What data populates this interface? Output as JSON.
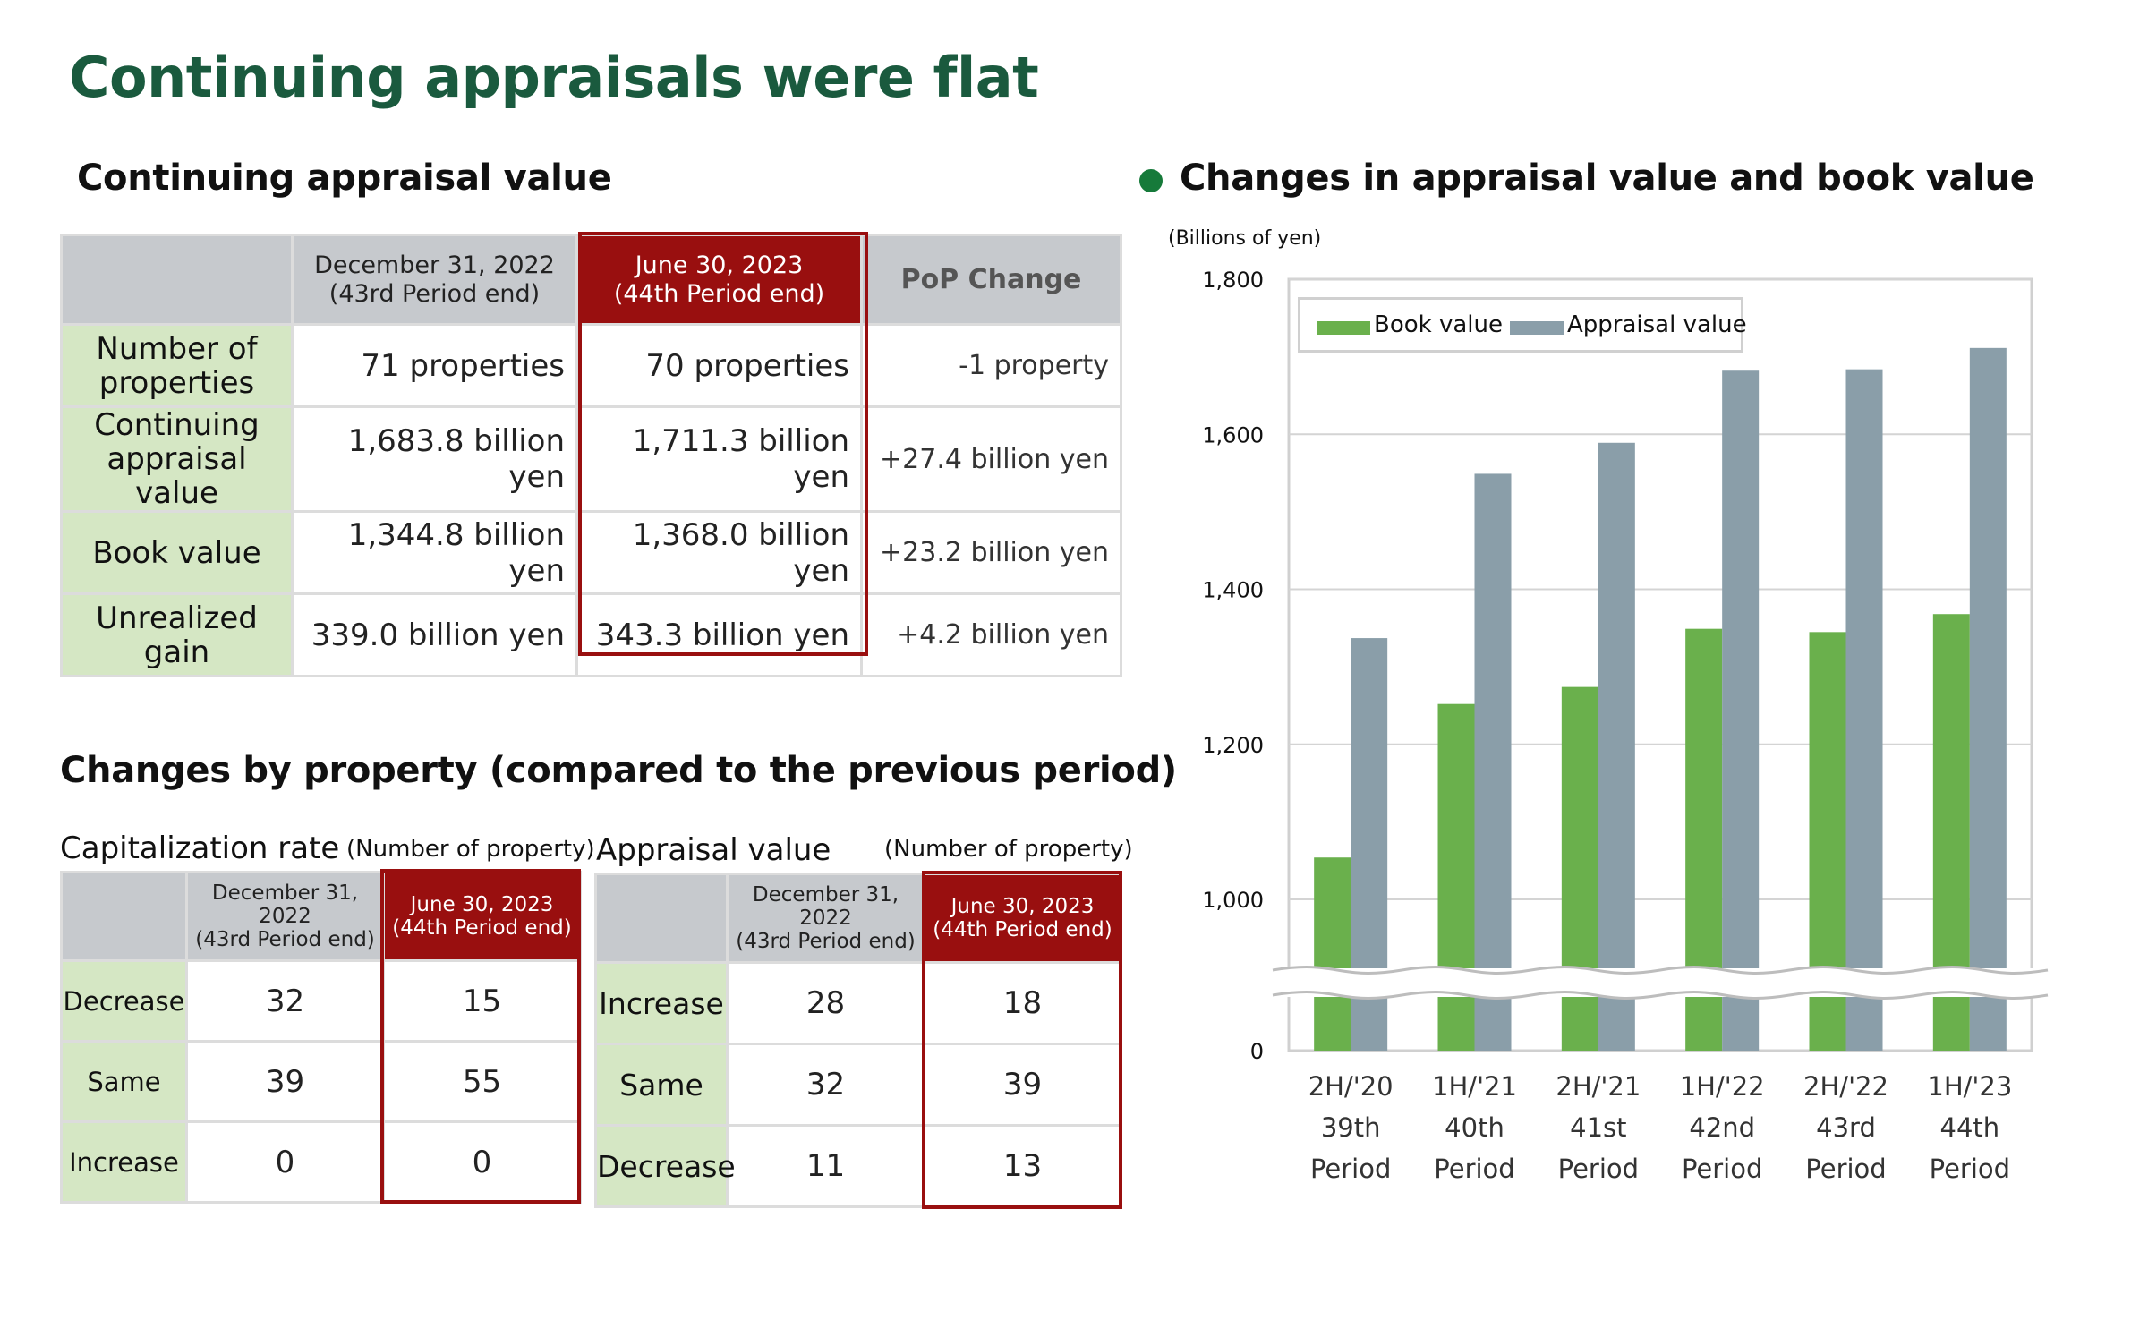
{
  "title": "Continuing appraisals were flat",
  "appraisal_table": {
    "heading": "Continuing appraisal value",
    "col_prev_line1": "December 31, 2022",
    "col_prev_line2": "(43rd Period end)",
    "col_curr_line1": "June 30, 2023",
    "col_curr_line2": "(44th Period end)",
    "col_change": "PoP Change",
    "rows": [
      {
        "label_line1": "Number of",
        "label_line2": "properties",
        "prev": "71 properties",
        "curr": "70 properties",
        "change": "-1 property"
      },
      {
        "label_line1": "Continuing",
        "label_line2": "appraisal value",
        "prev": "1,683.8 billion yen",
        "curr": "1,711.3 billion yen",
        "change": "+27.4 billion yen"
      },
      {
        "label_line1": "Book value",
        "label_line2": "",
        "prev": "1,344.8 billion yen",
        "curr": "1,368.0 billion yen",
        "change": "+23.2 billion yen"
      },
      {
        "label_line1": "Unrealized gain",
        "label_line2": "",
        "prev": "339.0 billion yen",
        "curr": "343.3 billion yen",
        "change": "+4.2 billion yen"
      }
    ]
  },
  "changes_section": {
    "heading": "Changes by property (compared to the previous period)",
    "cap_rate": {
      "title": "Capitalization rate",
      "note": "(Number of property)",
      "col_prev_line1": "December 31, 2022",
      "col_prev_line2": "(43rd Period end)",
      "col_curr_line1": "June 30, 2023",
      "col_curr_line2": "(44th Period end)",
      "rows": [
        {
          "label": "Decrease",
          "prev": "32",
          "curr": "15"
        },
        {
          "label": "Same",
          "prev": "39",
          "curr": "55"
        },
        {
          "label": "Increase",
          "prev": "0",
          "curr": "0"
        }
      ]
    },
    "appraisal": {
      "title": "Appraisal value",
      "note": "(Number of property)",
      "col_prev_line1": "December 31, 2022",
      "col_prev_line2": "(43rd Period end)",
      "col_curr_line1": "June 30, 2023",
      "col_curr_line2": "(44th Period end)",
      "rows": [
        {
          "label": "Increase",
          "prev": "28",
          "curr": "18"
        },
        {
          "label": "Same",
          "prev": "32",
          "curr": "39"
        },
        {
          "label": "Decrease",
          "prev": "11",
          "curr": "13"
        }
      ]
    }
  },
  "chart_data": {
    "type": "bar",
    "title": "Changes in appraisal value and book value",
    "unit_label": "(Billions of yen)",
    "categories": [
      [
        "2H/'20",
        "39th",
        "Period"
      ],
      [
        "1H/'21",
        "40th",
        "Period"
      ],
      [
        "2H/'21",
        "41st",
        "Period"
      ],
      [
        "1H/'22",
        "42nd",
        "Period"
      ],
      [
        "2H/'22",
        "43rd",
        "Period"
      ],
      [
        "1H/'23",
        "44th",
        "Period"
      ]
    ],
    "series": [
      {
        "name": "Book value",
        "color": "#6ab04c",
        "values": [
          1054,
          1252,
          1274,
          1349,
          1344.8,
          1368.0
        ]
      },
      {
        "name": "Appraisal value",
        "color": "#8a9ea9",
        "values": [
          1337,
          1549,
          1589,
          1682,
          1683.8,
          1711.3
        ]
      }
    ],
    "yticks": [
      "0",
      "1,000",
      "1,200",
      "1,400",
      "1,600",
      "1,800"
    ],
    "ylim": [
      0,
      1800
    ],
    "axis_break": [
      0,
      1000
    ],
    "grid": true,
    "legend_position": "top-left"
  }
}
